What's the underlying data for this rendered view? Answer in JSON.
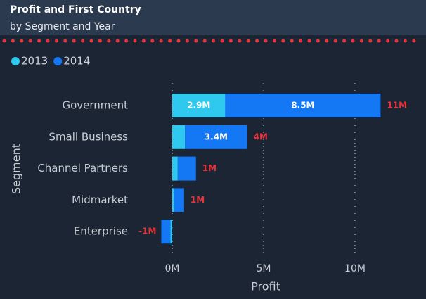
{
  "chart_data": {
    "type": "stacked_barh",
    "title": "Profit and First Country",
    "subtitle": "by Segment and Year",
    "xlabel": "Profit",
    "ylabel": "Segment",
    "categories": [
      "Government",
      "Small Business",
      "Channel Partners",
      "Midmarket",
      "Enterprise"
    ],
    "series": [
      {
        "name": "2013",
        "color": "#2fc9f0",
        "values": [
          2.9,
          0.7,
          0.3,
          0.1,
          -0.1
        ],
        "value_labels": [
          "2.9M",
          null,
          null,
          null,
          null
        ]
      },
      {
        "name": "2014",
        "color": "#1478f4",
        "values": [
          8.5,
          3.4,
          1.0,
          0.55,
          -0.5
        ],
        "value_labels": [
          "8.5M",
          "3.4M",
          null,
          null,
          null
        ]
      }
    ],
    "totals": {
      "values": [
        11.4,
        4.1,
        1.3,
        0.65,
        -0.6
      ],
      "value_labels": [
        "11M",
        "4M",
        "1M",
        "1M",
        "-1M"
      ],
      "color": "#e8333a"
    },
    "xlim": [
      -1,
      13
    ],
    "xticks": [
      {
        "value": 0,
        "label": "0M"
      },
      {
        "value": 5,
        "label": "5M"
      },
      {
        "value": 10,
        "label": "10M"
      }
    ],
    "grid": true,
    "legend": "top-left"
  }
}
